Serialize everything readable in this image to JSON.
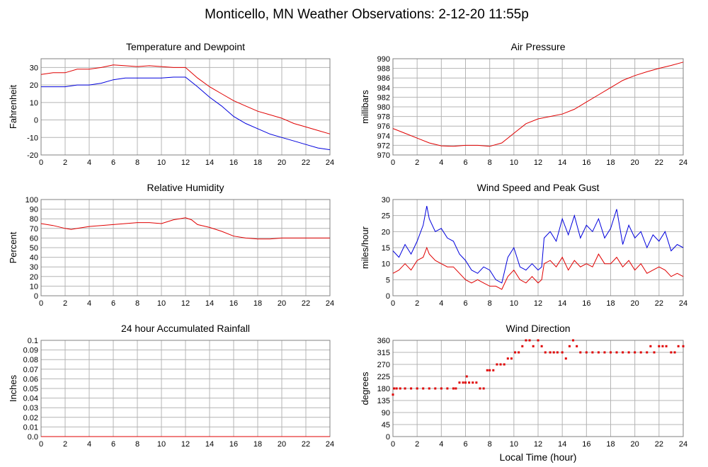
{
  "page_title": "Monticello, MN Weather Observations: 2-12-20 11:55p",
  "shared_xlabel": "Local Time (hour)",
  "colors": {
    "red": "#e00000",
    "blue": "#0000dd",
    "grid": "#b4b4b4",
    "frame": "#808080"
  },
  "chart_data": [
    {
      "id": "temp",
      "type": "line",
      "title": "Temperature and Dewpoint",
      "ylabel": "Fahrenheit",
      "xlabel": "",
      "xlim": [
        0,
        24
      ],
      "ylim": [
        -20,
        35
      ],
      "x_ticks": [
        0,
        2,
        4,
        6,
        8,
        10,
        12,
        14,
        16,
        18,
        20,
        22,
        24
      ],
      "y_ticks": [
        -20,
        -10,
        0,
        10,
        20,
        30
      ],
      "grid": true,
      "x": [
        0,
        1,
        2,
        3,
        4,
        5,
        6,
        7,
        8,
        9,
        10,
        11,
        12,
        13,
        14,
        15,
        16,
        17,
        18,
        19,
        20,
        21,
        22,
        23,
        24
      ],
      "series": [
        {
          "color": "red",
          "values": [
            26,
            27,
            27,
            29,
            29,
            30,
            31.5,
            31,
            30.5,
            31,
            30.5,
            30,
            30,
            24,
            19,
            15,
            11,
            8,
            5,
            3,
            1,
            -2,
            -4,
            -6,
            -8
          ]
        },
        {
          "color": "blue",
          "values": [
            19,
            19,
            19,
            20,
            20,
            21,
            23,
            24,
            24,
            24,
            24,
            24.5,
            24.5,
            19,
            13,
            8,
            2,
            -2,
            -5,
            -8,
            -10,
            -12,
            -14,
            -16,
            -17
          ]
        }
      ]
    },
    {
      "id": "pressure",
      "type": "line",
      "title": "Air Pressure",
      "ylabel": "millibars",
      "xlabel": "",
      "xlim": [
        0,
        24
      ],
      "ylim": [
        970,
        990
      ],
      "x_ticks": [
        0,
        2,
        4,
        6,
        8,
        10,
        12,
        14,
        16,
        18,
        20,
        22,
        24
      ],
      "y_ticks": [
        970,
        972,
        974,
        976,
        978,
        980,
        982,
        984,
        986,
        988,
        990
      ],
      "grid": true,
      "x": [
        0,
        1,
        2,
        3,
        4,
        5,
        6,
        7,
        8,
        9,
        10,
        11,
        12,
        13,
        14,
        15,
        16,
        17,
        18,
        19,
        20,
        21,
        22,
        23,
        24
      ],
      "series": [
        {
          "color": "red",
          "values": [
            975.5,
            974.5,
            973.5,
            972.5,
            971.9,
            971.8,
            972,
            972,
            971.8,
            972.5,
            974.5,
            976.5,
            977.5,
            978,
            978.5,
            979.5,
            981,
            982.5,
            984,
            985.5,
            986.5,
            987.3,
            988,
            988.6,
            989.3
          ]
        }
      ]
    },
    {
      "id": "rh",
      "type": "line",
      "title": "Relative Humidity",
      "ylabel": "Percent",
      "xlabel": "",
      "xlim": [
        0,
        24
      ],
      "ylim": [
        0,
        100
      ],
      "x_ticks": [
        0,
        2,
        4,
        6,
        8,
        10,
        12,
        14,
        16,
        18,
        20,
        22,
        24
      ],
      "y_ticks": [
        0,
        10,
        20,
        30,
        40,
        50,
        60,
        70,
        80,
        90,
        100
      ],
      "grid": true,
      "x": [
        0,
        1,
        2,
        2.5,
        3,
        4,
        5,
        6,
        7,
        8,
        9,
        10,
        11,
        12,
        12.5,
        13,
        14,
        15,
        16,
        17,
        18,
        19,
        20,
        21,
        22,
        23,
        24
      ],
      "series": [
        {
          "color": "red",
          "values": [
            75,
            73,
            70,
            69,
            70,
            72,
            73,
            74,
            75,
            76,
            76,
            75,
            79,
            81,
            79,
            74,
            71,
            67,
            62,
            60,
            59,
            59,
            60,
            60,
            60,
            60,
            60
          ]
        }
      ]
    },
    {
      "id": "wind",
      "type": "line",
      "title": "Wind Speed and Peak Gust",
      "ylabel": "miles/hour",
      "xlabel": "",
      "xlim": [
        0,
        24
      ],
      "ylim": [
        0,
        30
      ],
      "x_ticks": [
        0,
        2,
        4,
        6,
        8,
        10,
        12,
        14,
        16,
        18,
        20,
        22,
        24
      ],
      "y_ticks": [
        0,
        5,
        10,
        15,
        20,
        25,
        30
      ],
      "grid": true,
      "x": [
        0,
        0.5,
        1,
        1.5,
        2,
        2.5,
        2.8,
        3,
        3.5,
        4,
        4.5,
        5,
        5.5,
        6,
        6.5,
        7,
        7.5,
        8,
        8.5,
        9,
        9.5,
        10,
        10.5,
        11,
        11.5,
        12,
        12.3,
        12.5,
        13,
        13.5,
        14,
        14.5,
        15,
        15.5,
        16,
        16.5,
        17,
        17.5,
        18,
        18.5,
        19,
        19.5,
        20,
        20.5,
        21,
        21.5,
        22,
        22.5,
        23,
        23.5,
        24
      ],
      "series": [
        {
          "color": "blue",
          "values": [
            14,
            12,
            16,
            13,
            17,
            22,
            28,
            24,
            20,
            21,
            18,
            17,
            13,
            11,
            8,
            7,
            9,
            8,
            5,
            4,
            12,
            15,
            9,
            8,
            10,
            8,
            9,
            18,
            20,
            17,
            24,
            19,
            25,
            18,
            22,
            20,
            24,
            18,
            21,
            27,
            16,
            22,
            18,
            20,
            15,
            19,
            17,
            20,
            14,
            16,
            15
          ]
        },
        {
          "color": "red",
          "values": [
            7,
            8,
            10,
            8,
            11,
            12,
            15,
            13,
            11,
            10,
            9,
            9,
            7,
            5,
            4,
            5,
            4,
            3,
            3,
            2,
            6,
            8,
            5,
            4,
            6,
            4,
            5,
            10,
            11,
            9,
            12,
            8,
            11,
            9,
            10,
            9,
            13,
            10,
            10,
            12,
            9,
            11,
            8,
            10,
            7,
            8,
            9,
            8,
            6,
            7,
            6
          ]
        }
      ]
    },
    {
      "id": "rain",
      "type": "line",
      "title": "24 hour Accumulated Rainfall",
      "ylabel": "Inches",
      "xlabel": "",
      "xlim": [
        0,
        24
      ],
      "ylim": [
        0,
        0.1
      ],
      "x_ticks": [
        0,
        2,
        4,
        6,
        8,
        10,
        12,
        14,
        16,
        18,
        20,
        22,
        24
      ],
      "y_ticks": [
        0.0,
        0.01,
        0.02,
        0.03,
        0.04,
        0.05,
        0.06,
        0.07,
        0.08,
        0.09,
        0.1
      ],
      "y_tick_labels": [
        "0.0",
        "0.01",
        "0.02",
        "0.03",
        "0.04",
        "0.05",
        "0.06",
        "0.07",
        "0.08",
        "0.09",
        "0.1"
      ],
      "grid": true,
      "x": [
        0,
        24
      ],
      "series": [
        {
          "color": "red",
          "values": [
            0,
            0
          ]
        }
      ]
    },
    {
      "id": "dir",
      "type": "scatter",
      "title": "Wind Direction",
      "ylabel": "degrees",
      "xlabel": "Local Time (hour)",
      "xlim": [
        0,
        24
      ],
      "ylim": [
        0,
        360
      ],
      "x_ticks": [
        0,
        2,
        4,
        6,
        8,
        10,
        12,
        14,
        16,
        18,
        20,
        22,
        24
      ],
      "y_ticks": [
        0,
        45,
        90,
        135,
        180,
        225,
        270,
        315,
        360
      ],
      "grid": true,
      "x": [
        0,
        0.1,
        0.3,
        0.6,
        1,
        1.5,
        2,
        2.5,
        3,
        3.5,
        4,
        4.5,
        5,
        5.2,
        5.5,
        5.8,
        6,
        6.1,
        6.3,
        6.6,
        6.9,
        7.2,
        7.5,
        7.8,
        8,
        8.3,
        8.6,
        8.9,
        9.2,
        9.5,
        9.8,
        10.1,
        10.4,
        10.7,
        11,
        11.3,
        11.6,
        12,
        12.3,
        12.6,
        13,
        13.3,
        13.6,
        14,
        14.3,
        14.6,
        14.9,
        15.2,
        15.5,
        16,
        16.5,
        17,
        17.5,
        18,
        18.5,
        19,
        19.5,
        20,
        20.5,
        21,
        21.3,
        21.6,
        22,
        22.3,
        22.6,
        23,
        23.3,
        23.6,
        24
      ],
      "series": [
        {
          "color": "red",
          "values": [
            157,
            180,
            180,
            180,
            180,
            180,
            180,
            180,
            180,
            180,
            180,
            180,
            180,
            180,
            202,
            202,
            202,
            225,
            202,
            202,
            202,
            180,
            180,
            248,
            248,
            248,
            270,
            270,
            270,
            292,
            292,
            315,
            315,
            338,
            360,
            360,
            338,
            360,
            338,
            315,
            315,
            315,
            315,
            315,
            292,
            338,
            360,
            338,
            315,
            315,
            315,
            315,
            315,
            315,
            315,
            315,
            315,
            315,
            315,
            315,
            338,
            315,
            338,
            338,
            338,
            315,
            315,
            338,
            338
          ]
        }
      ]
    }
  ]
}
